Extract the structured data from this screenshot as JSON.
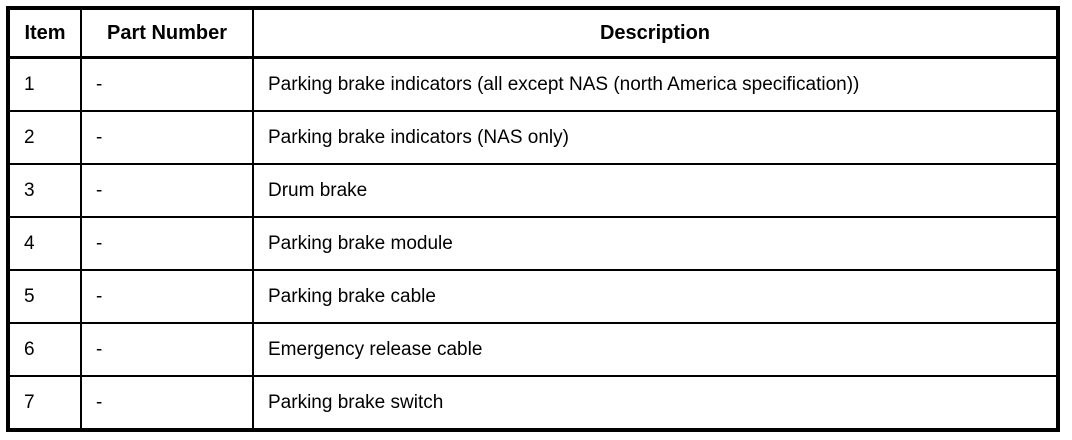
{
  "colors": {
    "border": "#000000",
    "background": "#ffffff",
    "text": "#000000"
  },
  "table": {
    "headers": {
      "item": "Item",
      "part_number": "Part Number",
      "description": "Description"
    },
    "rows": [
      {
        "item": "1",
        "part_number": "-",
        "description": "Parking brake indicators (all except NAS (north America specification))"
      },
      {
        "item": "2",
        "part_number": "-",
        "description": "Parking brake indicators (NAS only)"
      },
      {
        "item": "3",
        "part_number": "-",
        "description": "Drum brake"
      },
      {
        "item": "4",
        "part_number": "-",
        "description": "Parking brake module"
      },
      {
        "item": "5",
        "part_number": "-",
        "description": "Parking brake cable"
      },
      {
        "item": "6",
        "part_number": "-",
        "description": "Emergency release cable"
      },
      {
        "item": "7",
        "part_number": "-",
        "description": "Parking brake switch"
      }
    ]
  }
}
